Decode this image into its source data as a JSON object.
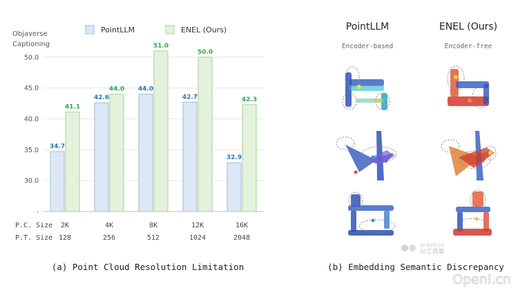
{
  "chart_data": {
    "type": "bar",
    "ylabel": "Objaverse\nCaptioning",
    "ylim": [
      25,
      53
    ],
    "yticks": [
      30.0,
      35.0,
      40.0,
      45.0,
      50.0
    ],
    "grid": true,
    "legend_position": "top",
    "categories": [
      "2K",
      "4K",
      "8K",
      "12K",
      "16K"
    ],
    "pc_size_label": "P.C. Size",
    "pt_size_label": "P.T. Size",
    "pt_sizes": [
      "128",
      "256",
      "512",
      "1024",
      "2048"
    ],
    "series": [
      {
        "name": "PointLLM",
        "values": [
          34.7,
          42.6,
          44.0,
          42.7,
          32.9
        ],
        "fill": "#dce8f5",
        "stroke": "#9db9d6",
        "label_color": "#2e74b5"
      },
      {
        "name": "ENEL (Ours)",
        "values": [
          41.1,
          44.0,
          51.0,
          50.0,
          42.3
        ],
        "fill": "#e4f2dc",
        "stroke": "#a9cf96",
        "label_color": "#2eaa4a"
      }
    ],
    "caption": "(a) Point Cloud Resolution Limitation"
  },
  "right_panel": {
    "col1_title": "PointLLM",
    "col1_sub": "Encoder-based",
    "col2_title": "ENEL (Ours)",
    "col2_sub": "Encoder-free",
    "caption": "(b) Embedding Semantic Discrepancy",
    "objects": [
      "chair",
      "airplane",
      "table"
    ]
  },
  "watermark": {
    "site": "ai-bot.cn",
    "tool": "AI工具集",
    "brand": "OpenI.cn"
  }
}
